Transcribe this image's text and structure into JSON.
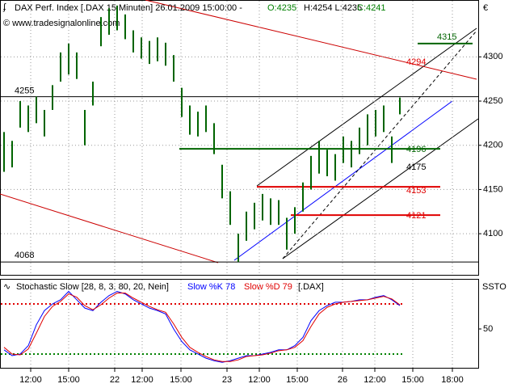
{
  "chart_data": [
    {
      "type": "ohlc",
      "title": "DAX Perf. Index [.DAX 15 Minuten] 26.01.2009 15:00:00 -",
      "open_label": "O:4235",
      "high_low_label": "H:4254 L:4235",
      "close_label": "C:4241",
      "copyright": "© www.tradesignalonline.com",
      "currency": "€",
      "color": "#006400",
      "high": [
        4215,
        4205,
        4250,
        4245,
        4255,
        4240,
        4268,
        4305,
        4315,
        4305,
        4240,
        4272,
        4345,
        4355,
        4358,
        4348,
        4330,
        4322,
        4318,
        4322,
        4316,
        4302,
        4265,
        4245,
        4238,
        4245,
        4225,
        4178,
        4148,
        4100,
        4125,
        4135,
        4145,
        4140,
        4138,
        4118,
        4130,
        4158,
        4188,
        4205,
        4195,
        4190,
        4210,
        4205,
        4220,
        4235,
        4240,
        4245,
        4210,
        4254
      ],
      "low": [
        4170,
        4175,
        4220,
        4215,
        4225,
        4210,
        4240,
        4272,
        4280,
        4275,
        4200,
        4245,
        4312,
        4325,
        4330,
        4320,
        4305,
        4298,
        4292,
        4295,
        4290,
        4272,
        4232,
        4212,
        4210,
        4215,
        4190,
        4140,
        4110,
        4068,
        4092,
        4105,
        4115,
        4110,
        4110,
        4082,
        4100,
        4125,
        4150,
        4168,
        4165,
        4160,
        4180,
        4175,
        4190,
        4200,
        4210,
        4215,
        4180,
        4235
      ],
      "xlim": [
        -0.5,
        58.7
      ],
      "xticks": [
        {
          "value": 3.3,
          "label": "12:00"
        },
        {
          "value": 8,
          "label": "15:00"
        },
        22,
        {
          "value": 17.1,
          "label": "12:00"
        },
        {
          "value": 21.9,
          "label": "15:00"
        },
        23,
        {
          "value": 31.6,
          "label": "12:00"
        },
        {
          "value": 36.3,
          "label": "15:00"
        },
        26,
        {
          "value": 45.9,
          "label": "12:00"
        },
        {
          "value": 50.6,
          "label": "15:00"
        },
        {
          "value": 55.5,
          "label": "18:00"
        }
      ],
      "xtick_positions": [
        3.3,
        8,
        13.7,
        17.1,
        21.9,
        27.6,
        31.6,
        36.3,
        41.9,
        45.9,
        50.6,
        55.5
      ],
      "ylim": [
        4053.5,
        4364.3
      ],
      "yticks": [
        4100,
        4150,
        4200,
        4250,
        4300
      ],
      "grid": true,
      "levels": [
        {
          "value": 4255,
          "color": "#000000"
        },
        {
          "value": 4068,
          "color": "#000000"
        },
        {
          "value": 4196,
          "color": "#006400"
        },
        {
          "value": 4153,
          "color": "#e00000"
        },
        {
          "value": 4121,
          "color": "#e00000"
        },
        {
          "value": 4315,
          "color": "#006400"
        },
        {
          "value": 4294,
          "color": "#e00000"
        },
        {
          "value": 4175,
          "color": "#000000"
        }
      ]
    },
    {
      "type": "line",
      "title": "Stochastic Slow [28, 8, 3, 80, 20, Nein]",
      "instrument": "[.DAX]",
      "axis_label": "SSTO",
      "series": [
        {
          "name": "Slow %K 78",
          "color": "#0000ff",
          "values": [
            25,
            18,
            20,
            30,
            55,
            72,
            80,
            85,
            95,
            85,
            75,
            72,
            82,
            90,
            95,
            92,
            85,
            80,
            75,
            72,
            68,
            50,
            35,
            25,
            20,
            15,
            12,
            10,
            12,
            15,
            18,
            18,
            20,
            22,
            25,
            25,
            30,
            40,
            60,
            72,
            78,
            82,
            82,
            83,
            85,
            85,
            88,
            90,
            85,
            78
          ]
        },
        {
          "name": "Slow %D 79",
          "color": "#e00000",
          "values": [
            28,
            20,
            19,
            26,
            45,
            65,
            77,
            83,
            92,
            88,
            78,
            73,
            79,
            87,
            93,
            93,
            87,
            82,
            77,
            73,
            70,
            56,
            40,
            28,
            22,
            17,
            13,
            11,
            11,
            13,
            17,
            18,
            19,
            21,
            24,
            25,
            28,
            36,
            53,
            68,
            76,
            80,
            82,
            83,
            84,
            85,
            87,
            89,
            86,
            79
          ]
        }
      ],
      "ylim": [
        3.5,
        110
      ],
      "yticks": [
        50
      ],
      "upper": 80,
      "upper_color": "#e00000",
      "lower": 20,
      "lower_color": "#008000"
    }
  ]
}
